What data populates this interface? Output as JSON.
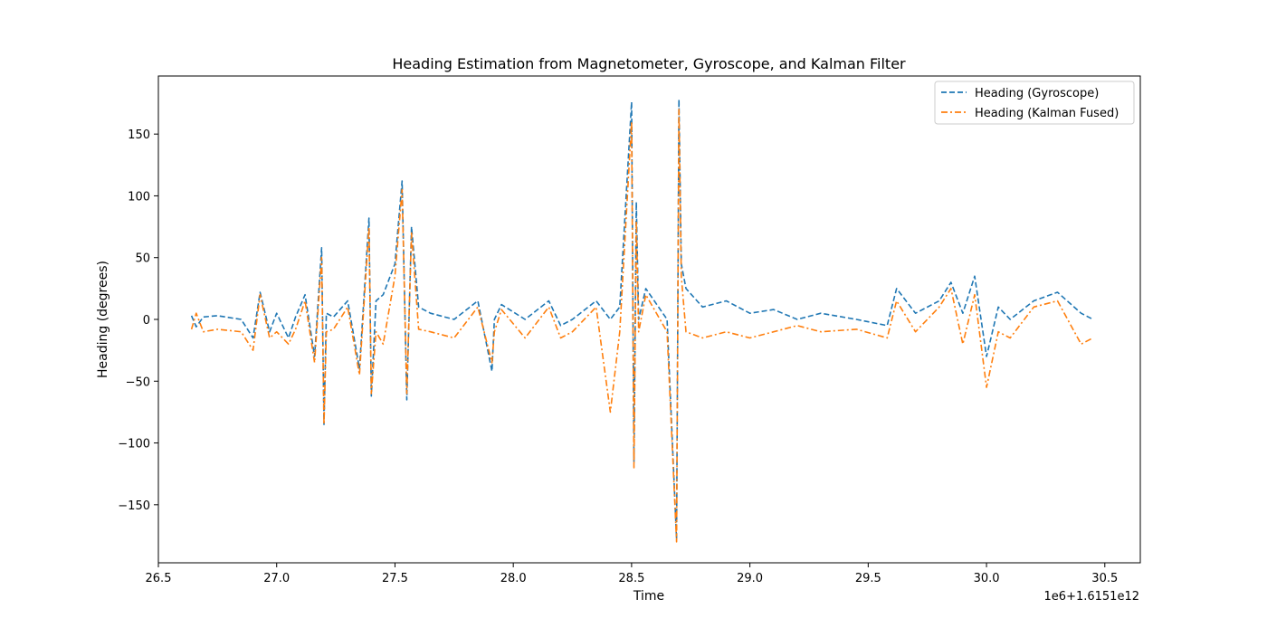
{
  "chart_data": {
    "type": "line",
    "title": "Heading Estimation from Magnetometer, Gyroscope, and Kalman Filter",
    "xlabel": "Time",
    "ylabel": "Heading (degrees)",
    "x_offset_label": "1e6+1.6151e12",
    "xlim": [
      26.5,
      30.65
    ],
    "ylim": [
      -197,
      197
    ],
    "x_ticks": [
      26.5,
      27.0,
      27.5,
      28.0,
      28.5,
      29.0,
      29.5,
      30.0,
      30.5
    ],
    "x_tick_labels": [
      "26.5",
      "27.0",
      "27.5",
      "28.0",
      "28.5",
      "29.0",
      "29.5",
      "30.0",
      "30.5"
    ],
    "y_ticks": [
      -150,
      -100,
      -50,
      0,
      50,
      100,
      150
    ],
    "y_tick_labels": [
      "−150",
      "−100",
      "−50",
      "0",
      "50",
      "100",
      "150"
    ],
    "grid": false,
    "legend_position": "top-right",
    "series": [
      {
        "name": "Heading (Gyroscope)",
        "color": "#1f77b4",
        "dash": "dashed",
        "x": [
          26.64,
          26.66,
          26.69,
          26.75,
          26.85,
          26.9,
          26.93,
          26.97,
          27.0,
          27.05,
          27.08,
          27.12,
          27.16,
          27.19,
          27.2,
          27.21,
          27.24,
          27.3,
          27.35,
          27.39,
          27.4,
          27.42,
          27.45,
          27.5,
          27.53,
          27.55,
          27.57,
          27.6,
          27.65,
          27.75,
          27.85,
          27.91,
          27.92,
          27.95,
          28.05,
          28.15,
          28.2,
          28.25,
          28.35,
          28.41,
          28.45,
          28.5,
          28.51,
          28.52,
          28.53,
          28.56,
          28.65,
          28.69,
          28.7,
          28.71,
          28.73,
          28.8,
          28.9,
          29.0,
          29.1,
          29.2,
          29.3,
          29.45,
          29.58,
          29.62,
          29.7,
          29.8,
          29.85,
          29.9,
          29.95,
          30.0,
          30.05,
          30.1,
          30.2,
          30.3,
          30.4,
          30.45
        ],
        "y": [
          3,
          -6,
          2,
          3,
          0,
          -15,
          22,
          -10,
          5,
          -15,
          2,
          20,
          -30,
          58,
          -85,
          5,
          2,
          15,
          -40,
          82,
          -62,
          15,
          20,
          45,
          112,
          -65,
          75,
          10,
          5,
          0,
          15,
          -42,
          0,
          12,
          0,
          15,
          -5,
          0,
          15,
          0,
          10,
          176,
          -115,
          95,
          0,
          25,
          0,
          -178,
          178,
          45,
          25,
          10,
          15,
          5,
          8,
          0,
          5,
          0,
          -5,
          25,
          5,
          15,
          30,
          5,
          35,
          -30,
          10,
          0,
          15,
          22,
          5,
          0
        ]
      },
      {
        "name": "Heading (Kalman Fused)",
        "color": "#ff7f0e",
        "dash": "dashdot",
        "x": [
          26.64,
          26.66,
          26.69,
          26.75,
          26.85,
          26.9,
          26.93,
          26.97,
          27.0,
          27.05,
          27.08,
          27.12,
          27.16,
          27.19,
          27.2,
          27.21,
          27.24,
          27.3,
          27.35,
          27.39,
          27.4,
          27.42,
          27.45,
          27.5,
          27.53,
          27.55,
          27.57,
          27.6,
          27.65,
          27.75,
          27.85,
          27.91,
          27.92,
          27.95,
          28.05,
          28.15,
          28.2,
          28.25,
          28.35,
          28.41,
          28.45,
          28.5,
          28.51,
          28.52,
          28.53,
          28.56,
          28.65,
          28.69,
          28.7,
          28.71,
          28.73,
          28.8,
          28.9,
          29.0,
          29.1,
          29.2,
          29.3,
          29.45,
          29.58,
          29.62,
          29.7,
          29.8,
          29.85,
          29.9,
          29.95,
          30.0,
          30.05,
          30.1,
          30.2,
          30.3,
          30.4,
          30.45
        ],
        "y": [
          -8,
          5,
          -10,
          -8,
          -10,
          -25,
          20,
          -15,
          -10,
          -20,
          -8,
          15,
          -35,
          50,
          -85,
          -10,
          -8,
          10,
          -45,
          75,
          -60,
          -10,
          -20,
          35,
          105,
          -60,
          70,
          -8,
          -10,
          -15,
          10,
          -35,
          -10,
          8,
          -15,
          10,
          -15,
          -10,
          10,
          -75,
          -10,
          160,
          -120,
          80,
          -10,
          20,
          -10,
          -180,
          170,
          35,
          -10,
          -15,
          -10,
          -15,
          -10,
          -5,
          -10,
          -8,
          -15,
          15,
          -10,
          10,
          25,
          -20,
          20,
          -55,
          -10,
          -15,
          10,
          15,
          -20,
          -15
        ]
      }
    ]
  }
}
